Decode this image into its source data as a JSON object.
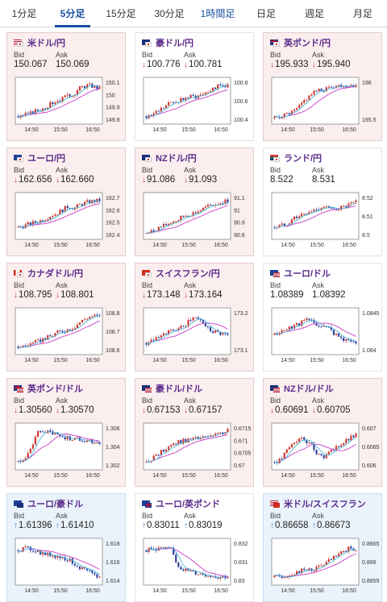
{
  "tabs": [
    "1分足",
    "5分足",
    "15分足",
    "30分足",
    "1時間足",
    "日足",
    "週足",
    "月足"
  ],
  "active_tab": 1,
  "times": [
    "14:50",
    "15:50",
    "16:50"
  ],
  "cards": [
    {
      "pair": "米ドル/円",
      "flags": [
        "us",
        "jp"
      ],
      "bid": "150.067",
      "ask": "150.069",
      "dir": "",
      "bg": "r",
      "ticks": [
        "150.1",
        "150",
        "149.9",
        "149.8"
      ],
      "trend": [
        0.1,
        0.12,
        0.18,
        0.25,
        0.3,
        0.4,
        0.5,
        0.55,
        0.62,
        0.7,
        0.85,
        0.9,
        0.88,
        0.82
      ]
    },
    {
      "pair": "豪ドル/円",
      "flags": [
        "au",
        "jp"
      ],
      "bid": "100.776",
      "ask": "100.781",
      "dir": "down",
      "bg": "w",
      "ticks": [
        "100.8",
        "100.6",
        "100.4"
      ],
      "trend": [
        0.1,
        0.15,
        0.25,
        0.35,
        0.45,
        0.5,
        0.55,
        0.6,
        0.62,
        0.7,
        0.78,
        0.85,
        0.88,
        0.9
      ]
    },
    {
      "pair": "英ポンド/円",
      "flags": [
        "gb",
        "jp"
      ],
      "bid": "195.933",
      "ask": "195.940",
      "dir": "down",
      "bg": "r",
      "ticks": [
        "196",
        "195.5"
      ],
      "trend": [
        0.05,
        0.1,
        0.15,
        0.2,
        0.35,
        0.55,
        0.7,
        0.75,
        0.8,
        0.85,
        0.9,
        0.88,
        0.92,
        0.9
      ]
    },
    {
      "pair": "ユーロ/円",
      "flags": [
        "eu",
        "jp"
      ],
      "bid": "162.656",
      "ask": "162.660",
      "dir": "down",
      "bg": "r",
      "ticks": [
        "162.7",
        "162.6",
        "162.5",
        "162.4"
      ],
      "trend": [
        0.2,
        0.25,
        0.3,
        0.35,
        0.4,
        0.5,
        0.55,
        0.65,
        0.75,
        0.7,
        0.8,
        0.85,
        0.88,
        0.9
      ]
    },
    {
      "pair": "NZドル/円",
      "flags": [
        "nz",
        "jp"
      ],
      "bid": "91.086",
      "ask": "91.093",
      "dir": "down",
      "bg": "r",
      "ticks": [
        "91.1",
        "91",
        "90.9",
        "90.8"
      ],
      "trend": [
        0.05,
        0.1,
        0.2,
        0.25,
        0.35,
        0.4,
        0.5,
        0.55,
        0.6,
        0.68,
        0.75,
        0.8,
        0.85,
        0.9
      ]
    },
    {
      "pair": "ランド/円",
      "flags": [
        "za",
        "jp"
      ],
      "bid": "8.522",
      "ask": "8.531",
      "dir": "",
      "bg": "w",
      "ticks": [
        "8.52",
        "8.51",
        "8.5"
      ],
      "trend": [
        0.2,
        0.25,
        0.3,
        0.45,
        0.5,
        0.55,
        0.62,
        0.7,
        0.75,
        0.65,
        0.7,
        0.72,
        0.78,
        0.85
      ]
    },
    {
      "pair": "カナダドル/円",
      "flags": [
        "ca",
        "jp"
      ],
      "bid": "108.795",
      "ask": "108.801",
      "dir": "down",
      "bg": "r",
      "ticks": [
        "108.8",
        "108.7",
        "108.6"
      ],
      "trend": [
        0.1,
        0.12,
        0.18,
        0.22,
        0.3,
        0.35,
        0.45,
        0.5,
        0.55,
        0.62,
        0.75,
        0.85,
        0.9,
        0.88
      ]
    },
    {
      "pair": "スイスフラン/円",
      "flags": [
        "ch",
        "jp"
      ],
      "bid": "173.148",
      "ask": "173.164",
      "dir": "down",
      "bg": "r",
      "ticks": [
        "173.2",
        "173.1"
      ],
      "trend": [
        0.2,
        0.3,
        0.4,
        0.45,
        0.5,
        0.55,
        0.6,
        0.8,
        0.85,
        0.75,
        0.55,
        0.5,
        0.45,
        0.4
      ]
    },
    {
      "pair": "ユーロ/ドル",
      "flags": [
        "eu",
        "us"
      ],
      "bid": "1.08389",
      "ask": "1.08392",
      "dir": "",
      "bg": "w",
      "ticks": [
        "1.0845",
        "1.084"
      ],
      "trend": [
        0.4,
        0.5,
        0.55,
        0.65,
        0.7,
        0.8,
        0.75,
        0.65,
        0.6,
        0.55,
        0.35,
        0.3,
        0.25,
        0.2
      ]
    },
    {
      "pair": "英ポンド/ドル",
      "flags": [
        "gb",
        "us"
      ],
      "bid": "1.30560",
      "ask": "1.30570",
      "dir": "down",
      "bg": "r",
      "ticks": [
        "1.306",
        "1.304",
        "1.302"
      ],
      "trend": [
        0.1,
        0.2,
        0.4,
        0.85,
        0.9,
        0.85,
        0.8,
        0.75,
        0.72,
        0.7,
        0.68,
        0.65,
        0.62,
        0.6
      ]
    },
    {
      "pair": "豪ドル/ドル",
      "flags": [
        "au",
        "us"
      ],
      "bid": "0.67153",
      "ask": "0.67157",
      "dir": "down",
      "bg": "r",
      "ticks": [
        "0.6715",
        "0.671",
        "0.6705",
        "0.67"
      ],
      "trend": [
        0.1,
        0.2,
        0.3,
        0.45,
        0.55,
        0.6,
        0.65,
        0.68,
        0.7,
        0.72,
        0.75,
        0.78,
        0.85,
        0.9
      ]
    },
    {
      "pair": "NZドル/ドル",
      "flags": [
        "nz",
        "us"
      ],
      "bid": "0.60691",
      "ask": "0.60705",
      "dir": "down",
      "bg": "r",
      "ticks": [
        "0.607",
        "0.6065",
        "0.606"
      ],
      "trend": [
        0.1,
        0.15,
        0.4,
        0.6,
        0.7,
        0.65,
        0.5,
        0.3,
        0.25,
        0.35,
        0.5,
        0.6,
        0.7,
        0.8
      ]
    },
    {
      "pair": "ユーロ/豪ドル",
      "flags": [
        "eu",
        "au"
      ],
      "bid": "1.61396",
      "ask": "1.61410",
      "dir": "up",
      "bg": "b",
      "ticks": [
        "1.618",
        "1.616",
        "1.614"
      ],
      "trend": [
        0.8,
        0.85,
        0.82,
        0.78,
        0.7,
        0.68,
        0.65,
        0.6,
        0.55,
        0.45,
        0.35,
        0.25,
        0.15,
        0.1
      ]
    },
    {
      "pair": "ユーロ/英ポンド",
      "flags": [
        "eu",
        "gb"
      ],
      "bid": "0.83011",
      "ask": "0.83019",
      "dir": "up",
      "bg": "w",
      "ticks": [
        "0.832",
        "0.831",
        "0.83"
      ],
      "trend": [
        0.8,
        0.82,
        0.85,
        0.83,
        0.8,
        0.4,
        0.3,
        0.25,
        0.2,
        0.18,
        0.15,
        0.12,
        0.1,
        0.12
      ]
    },
    {
      "pair": "米ドル/スイスフラン",
      "flags": [
        "us",
        "ch"
      ],
      "bid": "0.86658",
      "ask": "0.86673",
      "dir": "up",
      "bg": "b",
      "ticks": [
        "0.8665",
        "0.866",
        "0.8655"
      ],
      "trend": [
        0.1,
        0.12,
        0.15,
        0.2,
        0.25,
        0.28,
        0.3,
        0.35,
        0.45,
        0.55,
        0.65,
        0.75,
        0.85,
        0.82
      ]
    }
  ],
  "labels": {
    "bid": "Bid",
    "ask": "Ask"
  },
  "colors": {
    "bull": "#d0342c",
    "bear": "#2a3f9d",
    "ma1": "#c83ac8",
    "ma2": "#48b8d8",
    "title": "#5a2a8a"
  }
}
